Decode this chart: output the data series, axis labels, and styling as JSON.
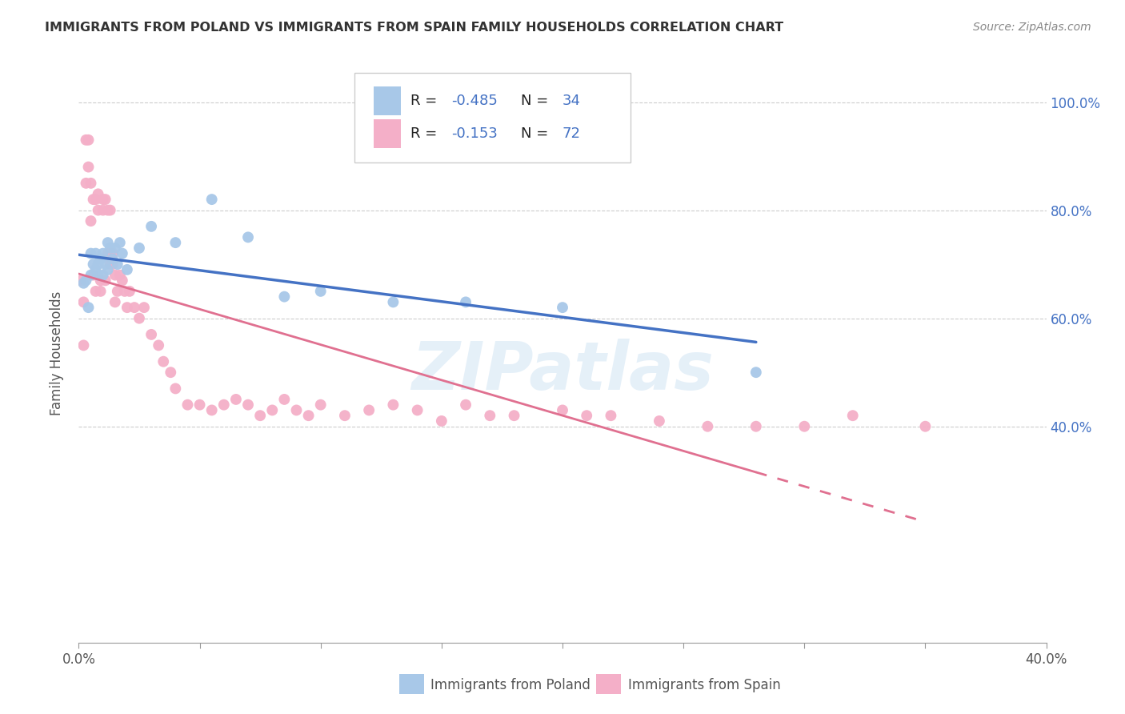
{
  "title": "IMMIGRANTS FROM POLAND VS IMMIGRANTS FROM SPAIN FAMILY HOUSEHOLDS CORRELATION CHART",
  "source": "Source: ZipAtlas.com",
  "ylabel": "Family Households",
  "xlim": [
    0.0,
    0.4
  ],
  "ylim": [
    0.0,
    1.07
  ],
  "poland_R": -0.485,
  "poland_N": 34,
  "spain_R": -0.153,
  "spain_N": 72,
  "poland_color": "#a8c8e8",
  "spain_color": "#f4afc8",
  "poland_line_color": "#4472c4",
  "spain_line_color": "#e07090",
  "watermark": "ZIPatlas",
  "poland_scatter_x": [
    0.002,
    0.003,
    0.004,
    0.005,
    0.005,
    0.006,
    0.007,
    0.007,
    0.008,
    0.008,
    0.009,
    0.01,
    0.01,
    0.011,
    0.012,
    0.012,
    0.013,
    0.014,
    0.015,
    0.016,
    0.017,
    0.018,
    0.02,
    0.025,
    0.03,
    0.04,
    0.055,
    0.07,
    0.085,
    0.1,
    0.13,
    0.16,
    0.2,
    0.28
  ],
  "poland_scatter_y": [
    0.665,
    0.67,
    0.62,
    0.72,
    0.68,
    0.7,
    0.69,
    0.72,
    0.68,
    0.7,
    0.71,
    0.68,
    0.72,
    0.7,
    0.74,
    0.69,
    0.73,
    0.71,
    0.73,
    0.7,
    0.74,
    0.72,
    0.69,
    0.73,
    0.77,
    0.74,
    0.82,
    0.75,
    0.64,
    0.65,
    0.63,
    0.63,
    0.62,
    0.5
  ],
  "spain_scatter_x": [
    0.001,
    0.002,
    0.002,
    0.003,
    0.003,
    0.004,
    0.004,
    0.005,
    0.005,
    0.006,
    0.006,
    0.007,
    0.007,
    0.008,
    0.008,
    0.009,
    0.009,
    0.01,
    0.01,
    0.011,
    0.011,
    0.012,
    0.012,
    0.013,
    0.013,
    0.014,
    0.014,
    0.015,
    0.015,
    0.016,
    0.017,
    0.018,
    0.019,
    0.02,
    0.021,
    0.023,
    0.025,
    0.027,
    0.03,
    0.033,
    0.035,
    0.038,
    0.04,
    0.045,
    0.05,
    0.055,
    0.06,
    0.065,
    0.07,
    0.075,
    0.08,
    0.085,
    0.09,
    0.095,
    0.1,
    0.11,
    0.12,
    0.13,
    0.14,
    0.15,
    0.16,
    0.17,
    0.18,
    0.2,
    0.21,
    0.22,
    0.24,
    0.26,
    0.28,
    0.3,
    0.32,
    0.35
  ],
  "spain_scatter_y": [
    0.67,
    0.63,
    0.55,
    0.85,
    0.93,
    0.88,
    0.93,
    0.85,
    0.78,
    0.82,
    0.68,
    0.82,
    0.65,
    0.8,
    0.83,
    0.67,
    0.65,
    0.82,
    0.8,
    0.82,
    0.67,
    0.8,
    0.72,
    0.8,
    0.7,
    0.72,
    0.7,
    0.68,
    0.63,
    0.65,
    0.68,
    0.67,
    0.65,
    0.62,
    0.65,
    0.62,
    0.6,
    0.62,
    0.57,
    0.55,
    0.52,
    0.5,
    0.47,
    0.44,
    0.44,
    0.43,
    0.44,
    0.45,
    0.44,
    0.42,
    0.43,
    0.45,
    0.43,
    0.42,
    0.44,
    0.42,
    0.43,
    0.44,
    0.43,
    0.41,
    0.44,
    0.42,
    0.42,
    0.43,
    0.42,
    0.42,
    0.41,
    0.4,
    0.4,
    0.4,
    0.42,
    0.4
  ]
}
